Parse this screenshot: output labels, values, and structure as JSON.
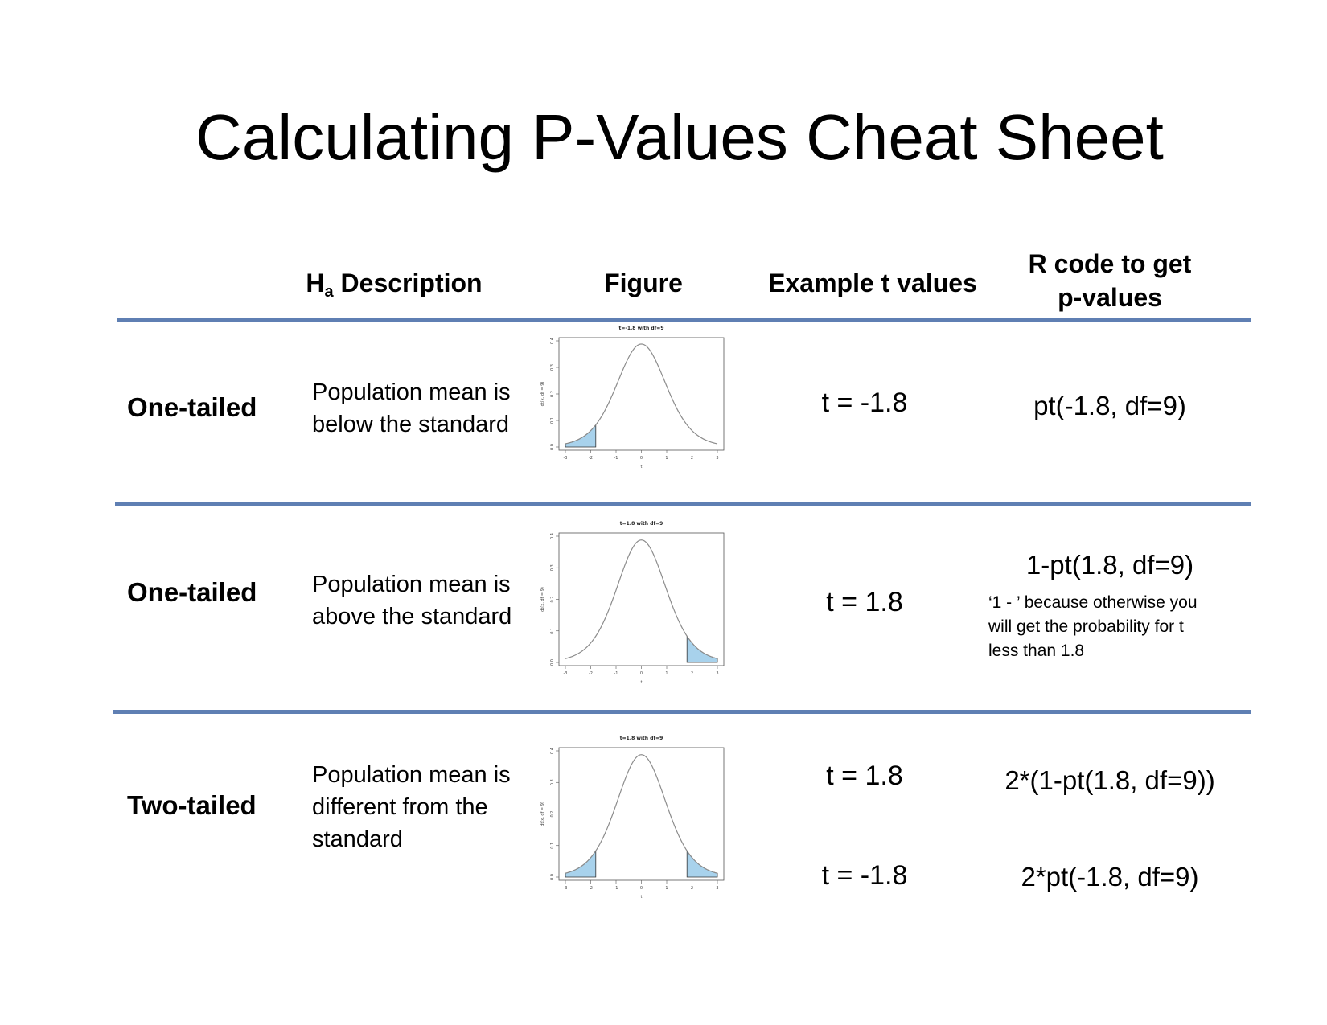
{
  "title": "Calculating P-Values Cheat Sheet",
  "headers": {
    "ha_main": "H",
    "ha_sub": "a",
    "ha_rest": " Description",
    "figure": "Figure",
    "example": "Example t values",
    "rcode_line1": "R code to get",
    "rcode_line2": "p-values"
  },
  "rows": [
    {
      "label": "One-tailed",
      "desc": [
        "Population mean is",
        "below the standard"
      ],
      "t_values": [
        "t = -1.8"
      ],
      "r_code": [
        "pt(-1.8, df=9)"
      ],
      "fig_title": "t=-1.8 with df=9",
      "shade": "left"
    },
    {
      "label": "One-tailed",
      "desc": [
        "Population mean is",
        "above the standard"
      ],
      "t_values": [
        "t = 1.8"
      ],
      "r_code": [
        "1-pt(1.8, df=9)"
      ],
      "note": [
        "‘1 - ’ because otherwise you",
        "will get the probability for t",
        "less than 1.8"
      ],
      "fig_title": "t=1.8 with df=9",
      "shade": "right"
    },
    {
      "label": "Two-tailed",
      "desc": [
        "Population mean is",
        "different from the",
        "standard"
      ],
      "t_values": [
        "t = 1.8",
        "t = -1.8"
      ],
      "r_code": [
        "2*(1-pt(1.8, df=9))",
        "2*pt(-1.8, df=9)"
      ],
      "fig_title": "t=1.8 with df=9",
      "shade": "both"
    }
  ],
  "figure_axes": {
    "x_ticks": [
      "-3",
      "-2",
      "-1",
      "0",
      "1",
      "2",
      "3"
    ],
    "y_ticks": [
      "0.0",
      "0.1",
      "0.2",
      "0.3",
      "0.4"
    ],
    "xlabel": "t",
    "ylabel": "dt(x, df = 9)"
  },
  "colors": {
    "rule": "#5f7fb3",
    "shade": "#a8d2ec",
    "curve": "#8c8c8c"
  }
}
